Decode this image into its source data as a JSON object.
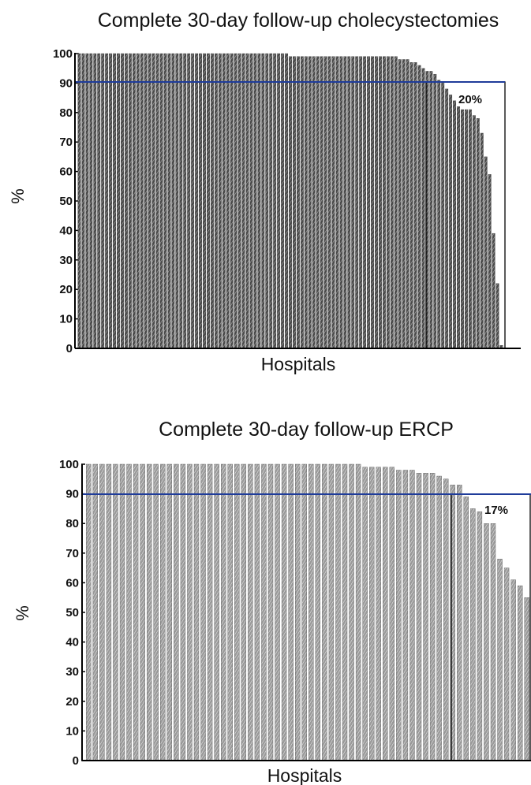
{
  "chart_data": [
    {
      "type": "bar",
      "title": "Complete 30-day follow-up cholecystectomies",
      "xlabel": "Hospitals",
      "ylabel": "%",
      "ylim": [
        0,
        100
      ],
      "yticks": [
        0,
        10,
        20,
        30,
        40,
        50,
        60,
        70,
        80,
        90,
        100
      ],
      "threshold": 90,
      "annotation": "20%",
      "bar_style": "dark-hatched",
      "values": [
        100,
        100,
        100,
        100,
        100,
        100,
        100,
        100,
        100,
        100,
        100,
        100,
        100,
        100,
        100,
        100,
        100,
        100,
        100,
        100,
        100,
        100,
        100,
        100,
        100,
        100,
        100,
        100,
        100,
        100,
        100,
        100,
        100,
        100,
        100,
        100,
        100,
        100,
        100,
        100,
        100,
        100,
        100,
        100,
        100,
        100,
        100,
        100,
        100,
        100,
        100,
        100,
        100,
        100,
        99,
        99,
        99,
        99,
        99,
        99,
        99,
        99,
        99,
        99,
        99,
        99,
        99,
        99,
        99,
        99,
        99,
        99,
        99,
        99,
        99,
        99,
        99,
        99,
        99,
        99,
        99,
        99,
        98,
        98,
        98,
        97,
        97,
        96,
        95,
        94,
        94,
        93,
        91,
        90,
        88,
        86,
        84,
        82,
        81,
        81,
        81,
        79,
        78,
        73,
        65,
        59,
        39,
        22,
        1
      ],
      "colors": {
        "bar": "#4a4a4a",
        "hatch": "#d8d8d8",
        "threshold_line": "#1f3c9a"
      }
    },
    {
      "type": "bar",
      "title": "Complete 30-day follow-up ERCP",
      "xlabel": "Hospitals",
      "ylabel": "%",
      "ylim": [
        0,
        100
      ],
      "yticks": [
        0,
        10,
        20,
        30,
        40,
        50,
        60,
        70,
        80,
        90,
        100
      ],
      "threshold": 90,
      "annotation": "17%",
      "bar_style": "light-hatched",
      "values": [
        100,
        100,
        100,
        100,
        100,
        100,
        100,
        100,
        100,
        100,
        100,
        100,
        100,
        100,
        100,
        100,
        100,
        100,
        100,
        100,
        100,
        100,
        100,
        100,
        100,
        100,
        100,
        100,
        100,
        100,
        100,
        100,
        100,
        100,
        100,
        100,
        100,
        100,
        100,
        100,
        100,
        99,
        99,
        99,
        99,
        99,
        98,
        98,
        98,
        97,
        97,
        97,
        96,
        95,
        93,
        93,
        89,
        85,
        84,
        80,
        80,
        68,
        65,
        61,
        59,
        55
      ],
      "colors": {
        "bar": "#9a9a9a",
        "hatch": "#efefef",
        "threshold_line": "#1f3c9a"
      }
    }
  ]
}
